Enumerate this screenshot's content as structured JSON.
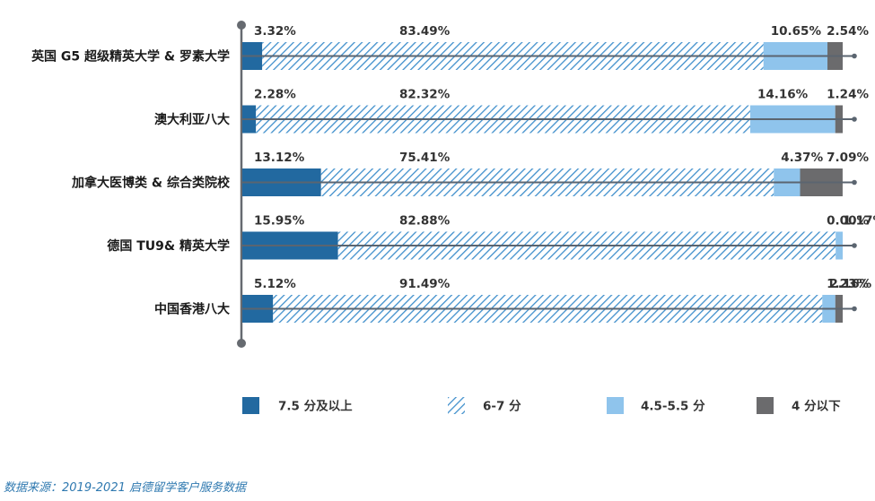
{
  "chart_data": {
    "type": "bar",
    "stacked": true,
    "orientation": "horizontal",
    "title": "",
    "xlabel": "",
    "ylabel": "",
    "xlim": [
      0,
      100
    ],
    "grid": false,
    "legend_position": "bottom",
    "categories": [
      "英国 G5 超级精英大学 & 罗素大学",
      "澳大利亚八大",
      "加拿大医博类 & 综合类院校",
      "德国 TU9& 精英大学",
      "中国香港八大"
    ],
    "series": [
      {
        "name": "7.5 分及以上",
        "color": "#2269a0",
        "pattern": "solid",
        "values": [
          3.32,
          2.28,
          13.12,
          15.95,
          5.12
        ],
        "labels": [
          "3.32%",
          "2.28%",
          "13.12%",
          "15.95%",
          "5.12%"
        ]
      },
      {
        "name": "6-7 分",
        "color": "#3f8fcc",
        "pattern": "diagonal-hatch",
        "values": [
          83.49,
          82.32,
          75.41,
          82.88,
          91.49
        ],
        "labels": [
          "83.49%",
          "82.32%",
          "75.41%",
          "82.88%",
          "91.49%"
        ]
      },
      {
        "name": "4.5-5.5 分",
        "color": "#8fc4ec",
        "pattern": "solid",
        "values": [
          10.65,
          14.16,
          4.37,
          1.17,
          2.16
        ],
        "labels": [
          "10.65%",
          "14.16%",
          "4.37%",
          "1.17%",
          "2.16%"
        ]
      },
      {
        "name": "4 分以下",
        "color": "#6b6b6d",
        "pattern": "solid",
        "values": [
          2.54,
          1.24,
          7.09,
          0.0,
          1.23
        ],
        "labels": [
          "2.54%",
          "1.24%",
          "7.09%",
          "0.00%",
          "1.23%"
        ]
      }
    ],
    "source": "数据来源：2019-2021 启德留学客户服务数据"
  }
}
